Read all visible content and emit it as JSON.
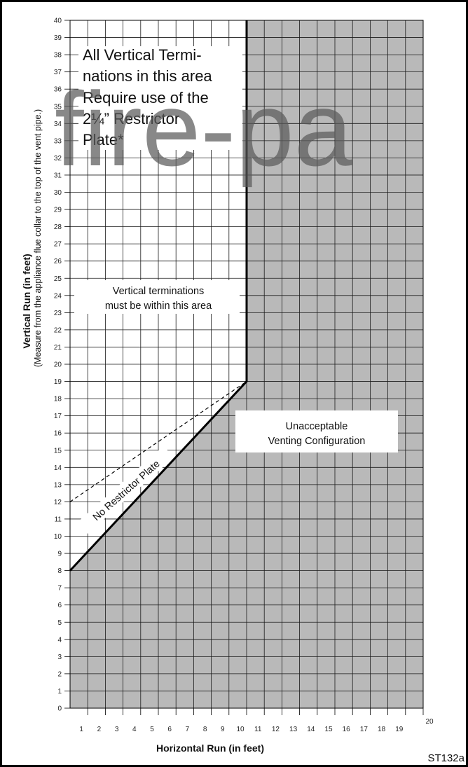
{
  "chart_data": {
    "type": "area",
    "xlabel": "Horizontal Run (in feet)",
    "ylabel": "Vertical Run (in feet)",
    "ylabel_note": "(Measure from the appliance flue collar to the top of the vent pipe.)",
    "xlim": [
      0,
      20
    ],
    "ylim": [
      0,
      40
    ],
    "x_ticks": [
      "1",
      "2",
      "3",
      "4",
      "5",
      "6",
      "7",
      "8",
      "9",
      "10",
      "11",
      "12",
      "13",
      "14",
      "15",
      "16",
      "17",
      "18",
      "19",
      "20"
    ],
    "y_ticks": [
      "0",
      "1",
      "2",
      "3",
      "4",
      "5",
      "6",
      "7",
      "8",
      "9",
      "10",
      "11",
      "12",
      "13",
      "14",
      "15",
      "16",
      "17",
      "18",
      "19",
      "20",
      "21",
      "22",
      "23",
      "24",
      "25",
      "26",
      "27",
      "28",
      "29",
      "30",
      "31",
      "32",
      "33",
      "34",
      "35",
      "36",
      "37",
      "38",
      "39",
      "40"
    ],
    "grid": true,
    "series": [
      {
        "name": "No Restrictor Plate",
        "style": "solid",
        "points": [
          [
            0,
            8
          ],
          [
            10,
            19
          ],
          [
            10,
            40
          ]
        ]
      },
      {
        "name": "",
        "style": "dashed",
        "points": [
          [
            0,
            12
          ],
          [
            10,
            19
          ]
        ]
      }
    ],
    "regions": {
      "unacceptable_fill": "#b9b9b9",
      "acceptable_fill": "#ffffff"
    },
    "annotations": {
      "restrictor_area": [
        "All Vertical Termi-",
        "nations in this area",
        "Require use of the",
        "2¼” Restrictor",
        "Plate*"
      ],
      "vertical_area": [
        "Vertical terminations",
        "must be within this area"
      ],
      "unacceptable": [
        "Unacceptable",
        "Venting Configuration"
      ],
      "line_label": "No Restrictor Plate"
    },
    "figure_code": "ST132a"
  },
  "watermark": "fire-pa",
  "colors": {
    "grid": "#1a1a1a",
    "border": "#000000",
    "shade": "#b9b9b9"
  }
}
